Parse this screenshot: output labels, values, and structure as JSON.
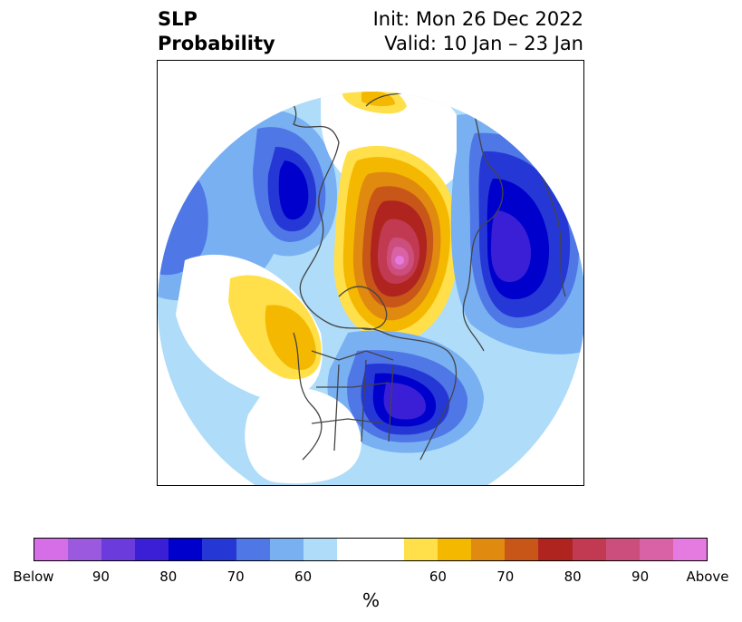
{
  "title": {
    "left_line1": "SLP",
    "left_line2": "Probability",
    "right_line1": "Init: Mon 26 Dec 2022",
    "right_line2": "Valid: 10 Jan – 23 Jan"
  },
  "colorbar": {
    "label": "%",
    "colors": [
      "#d66ee8",
      "#9b59e0",
      "#6b3bdc",
      "#3a1fd6",
      "#0000cd",
      "#2538d6",
      "#4f77e6",
      "#78b0f2",
      "#aedcf9",
      "#ffffff",
      "#ffffff",
      "#ffe04a",
      "#f5b800",
      "#e08a10",
      "#c85618",
      "#b02420",
      "#c23a52",
      "#cc4e7c",
      "#d962a6",
      "#e57ae0"
    ],
    "ticks": [
      "Below",
      "90",
      "80",
      "70",
      "60",
      "60",
      "70",
      "80",
      "90",
      "Above"
    ]
  }
}
